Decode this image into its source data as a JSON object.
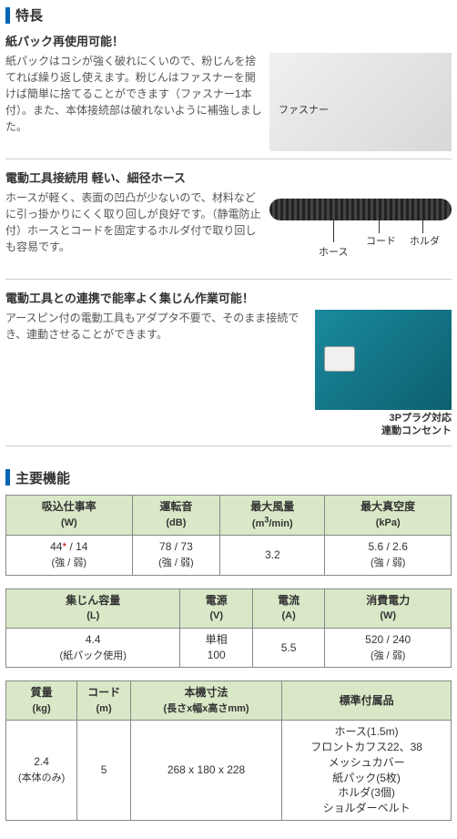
{
  "headers": {
    "features": "特長",
    "specs": "主要機能"
  },
  "features": [
    {
      "title": "紙パック再使用可能！",
      "text": "紙パックはコシが強く破れにくいので、粉じんを捨てれば繰り返し使えます。粉じんはファスナーを開けば簡単に捨てることができます（ファスナー1本付）。また、本体接続部は破れないように補強しました。",
      "img_label": "ファスナー"
    },
    {
      "title": "電動工具接続用  軽い、細径ホース",
      "text": "ホースが軽く、表面の凹凸が少ないので、材料などに引っ掛かりにくく取り回しが良好です。（静電防止付）ホースとコードを固定するホルダ付で取り回しも容易です。",
      "labels": {
        "hose": "ホース",
        "cord": "コード",
        "holder": "ホルダ"
      }
    },
    {
      "title": "電動工具との連携で能率よく集じん作業可能！",
      "text": "アースピン付の電動工具もアダプタ不要で、そのまま接続でき、連動させることができます。",
      "caption_l1": "3Pプラグ対応",
      "caption_l2": "連動コンセント"
    }
  ],
  "spec_tables": [
    {
      "columns": [
        {
          "header": "吸込仕事率",
          "unit": "(W)",
          "value": "44<span class='red'>*</span> / 14",
          "sub": "(強 / 弱)"
        },
        {
          "header": "運転音",
          "unit": "(dB)",
          "value": "78 / 73",
          "sub": "(強 / 弱)"
        },
        {
          "header": "最大風量",
          "unit": "(m<sup>3</sup>/min)",
          "value": "3.2",
          "sub": ""
        },
        {
          "header": "最大真空度",
          "unit": "(kPa)",
          "value": "5.6 / 2.6",
          "sub": "(強 / 弱)"
        }
      ]
    },
    {
      "columns": [
        {
          "header": "集じん容量",
          "unit": "(L)",
          "value": "4.4",
          "sub": "(紙パック使用)"
        },
        {
          "header": "電源",
          "unit": "(V)",
          "value": "単相<br>100",
          "sub": ""
        },
        {
          "header": "電流",
          "unit": "(A)",
          "value": "5.5",
          "sub": ""
        },
        {
          "header": "消費電力",
          "unit": "(W)",
          "value": "520 / 240",
          "sub": "(強 / 弱)"
        }
      ]
    },
    {
      "columns": [
        {
          "header": "質量",
          "unit": "(kg)",
          "value": "2.4",
          "sub": "(本体のみ)",
          "width": "16%"
        },
        {
          "header": "コード",
          "unit": "(m)",
          "value": "5",
          "sub": "",
          "width": "12%"
        },
        {
          "header": "本機寸法",
          "unit": "(長さx幅x高さmm)",
          "value": "268 x 180 x 228",
          "sub": "",
          "width": "34%"
        },
        {
          "header": "標準付属品",
          "unit": "",
          "value": "ホース(1.5m)<br>フロントカフス22、38<br>メッシュカバー<br>紙パック(5枚)<br>ホルダ(3個)<br>ショルダーベルト",
          "sub": "",
          "width": "38%"
        }
      ]
    }
  ]
}
